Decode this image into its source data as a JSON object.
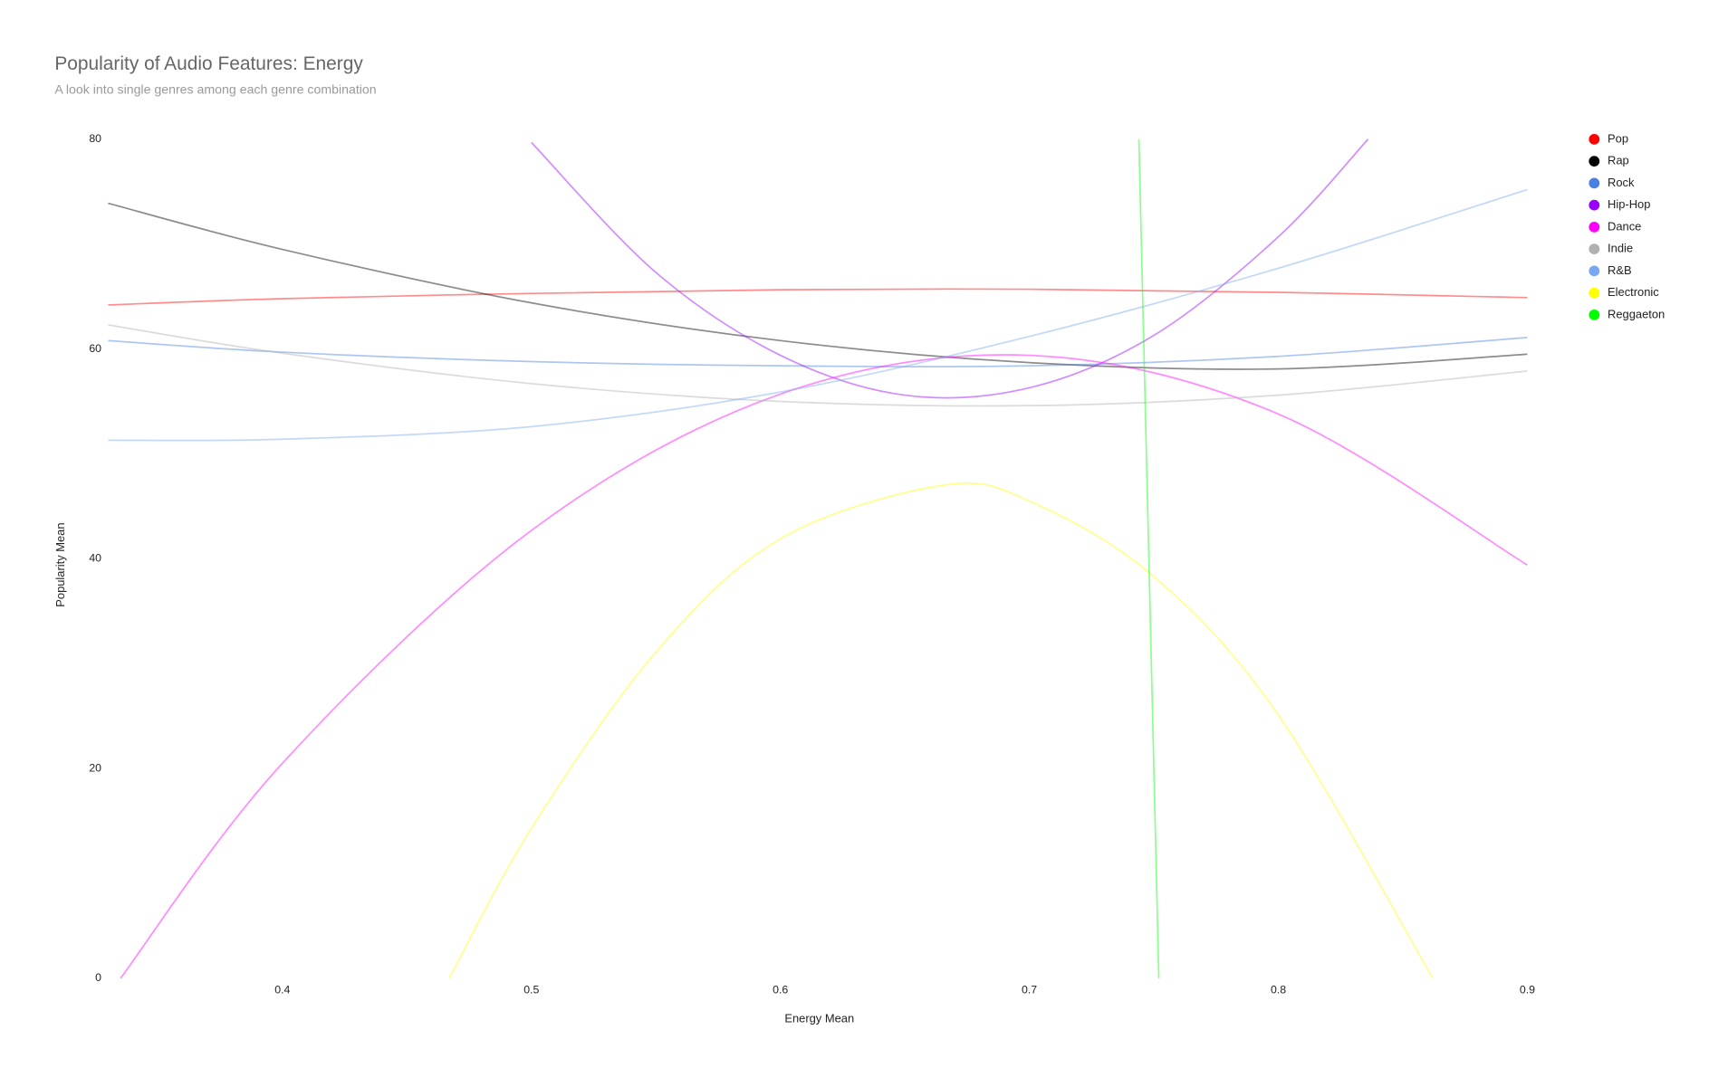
{
  "chart_data": {
    "type": "line",
    "title": "Popularity of Audio Features: Energy",
    "subtitle": "A look into single genres among each genre combination",
    "x_label": "Energy Mean",
    "y_label": "Popularity Mean",
    "xlim": [
      0.33,
      0.9
    ],
    "ylim": [
      0,
      80
    ],
    "xticks": [
      0.4,
      0.5,
      0.6,
      0.7,
      0.8,
      0.9
    ],
    "yticks": [
      0,
      20,
      40,
      60,
      80
    ],
    "grid": false,
    "legend": "right",
    "series": [
      {
        "name": "Pop",
        "color": "#ff0000",
        "x": [
          0.33,
          0.4,
          0.5,
          0.6,
          0.7,
          0.8,
          0.9
        ],
        "values": [
          64.2,
          64.8,
          65.3,
          65.65,
          65.7,
          65.4,
          64.9
        ]
      },
      {
        "name": "Rap",
        "color": "#000000",
        "x": [
          0.33,
          0.4,
          0.5,
          0.6,
          0.7,
          0.8,
          0.9
        ],
        "values": [
          73.9,
          69.5,
          64.4,
          60.8,
          58.7,
          58.1,
          59.5
        ]
      },
      {
        "name": "Rock",
        "color": "#4a80e0",
        "x": [
          0.33,
          0.4,
          0.5,
          0.6,
          0.7,
          0.8,
          0.9
        ],
        "values": [
          60.8,
          59.7,
          58.8,
          58.4,
          58.4,
          59.3,
          61.1
        ]
      },
      {
        "name": "Hip-Hop",
        "color": "#9900ff",
        "x": [
          0.5,
          0.55,
          0.6,
          0.65,
          0.7,
          0.75,
          0.8,
          0.836
        ],
        "values": [
          79.7,
          67.3,
          59.4,
          55.6,
          56.3,
          61.3,
          70.7,
          80
        ]
      },
      {
        "name": "Dance",
        "color": "#ff00ff",
        "x": [
          0.335,
          0.4,
          0.5,
          0.6,
          0.7,
          0.8,
          0.9
        ],
        "values": [
          0,
          20.5,
          42.7,
          55.7,
          59.4,
          53.8,
          39.4
        ]
      },
      {
        "name": "Indie",
        "color": "#b0b0b0",
        "x": [
          0.33,
          0.4,
          0.5,
          0.6,
          0.7,
          0.8,
          0.9
        ],
        "values": [
          62.3,
          59.6,
          56.7,
          55.0,
          54.6,
          55.6,
          57.9
        ]
      },
      {
        "name": "R&B",
        "color": "#7aa8f0",
        "x": [
          0.33,
          0.4,
          0.5,
          0.6,
          0.7,
          0.8,
          0.9
        ],
        "values": [
          51.3,
          51.4,
          52.6,
          55.9,
          61.2,
          67.7,
          75.2
        ]
      },
      {
        "name": "Electronic",
        "color": "#ffff00",
        "x": [
          0.467,
          0.5,
          0.55,
          0.6,
          0.665,
          0.7,
          0.75,
          0.8,
          0.862
        ],
        "values": [
          0,
          14.3,
          31.1,
          41.9,
          47,
          45.5,
          38.3,
          25.1,
          0
        ]
      },
      {
        "name": "Reggaeton",
        "color": "#00ff00",
        "x": [
          0.744,
          0.752
        ],
        "values": [
          80,
          0
        ]
      }
    ]
  }
}
